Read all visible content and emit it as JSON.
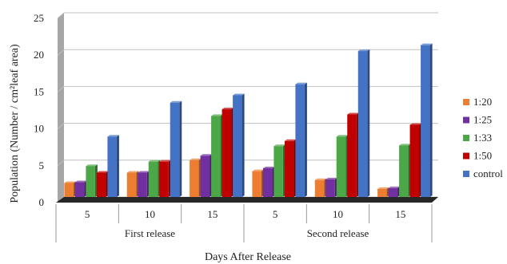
{
  "chart_data": {
    "type": "bar",
    "title": "",
    "xlabel": "Days After Release",
    "ylabel": "Population (Number / cm²leaf area)",
    "ylim": [
      0,
      25
    ],
    "yticks": [
      "0",
      "5",
      "10",
      "15",
      "20",
      "25"
    ],
    "grid": true,
    "legend_position": "right",
    "groups": [
      {
        "label": "First release",
        "categories": [
          "5",
          "10",
          "15"
        ]
      },
      {
        "label": "Second release",
        "categories": [
          "5",
          "10",
          "15"
        ]
      }
    ],
    "series": [
      {
        "name": "1:20",
        "color": "#ED7D31",
        "values": [
          1.9,
          3.3,
          5.0,
          3.5,
          2.3,
          1.1
        ]
      },
      {
        "name": "1:25",
        "color": "#7030A0",
        "values": [
          2.0,
          3.3,
          5.6,
          3.9,
          2.4,
          1.2
        ]
      },
      {
        "name": "1:33",
        "color": "#4CA746",
        "values": [
          4.2,
          4.8,
          11.0,
          6.9,
          8.2,
          7.0
        ]
      },
      {
        "name": "1:50",
        "color": "#C00000",
        "values": [
          3.3,
          4.8,
          11.9,
          7.6,
          11.2,
          9.8
        ]
      },
      {
        "name": "control",
        "color": "#4472C4",
        "values": [
          8.2,
          12.8,
          13.8,
          15.3,
          19.8,
          20.6
        ]
      }
    ]
  }
}
